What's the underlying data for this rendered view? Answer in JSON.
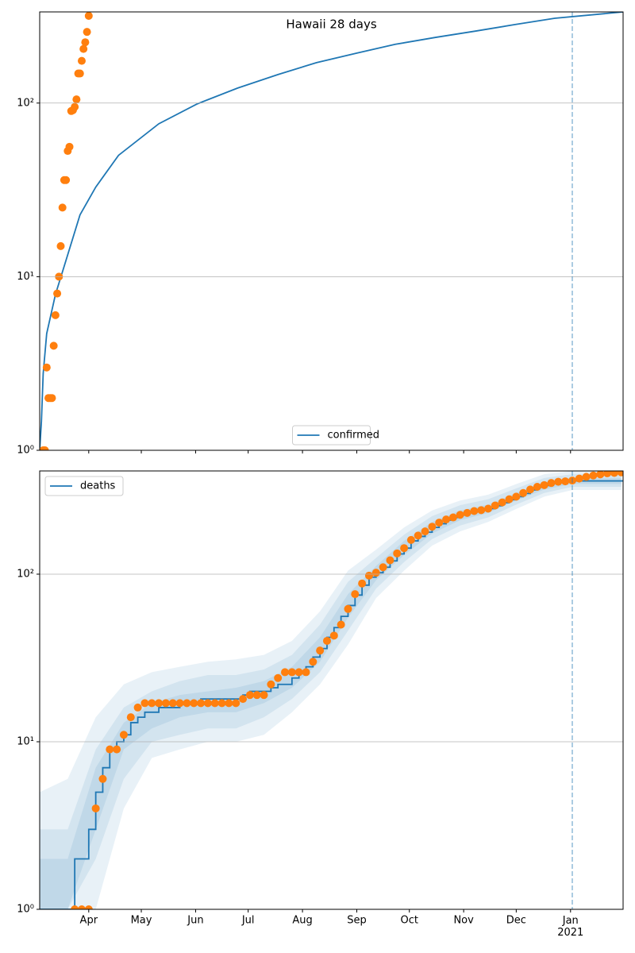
{
  "chart_data": [
    {
      "type": "line",
      "title": "Hawaii 28 days",
      "yscale": "log",
      "grid": true,
      "legend": "lower center",
      "xlim": [
        "2020-03-04",
        "2021-01-31"
      ],
      "ylim": [
        1,
        335
      ],
      "xticks": [
        "2020-04-01",
        "2020-05-01",
        "2020-06-01",
        "2020-07-01",
        "2020-08-01",
        "2020-09-01",
        "2020-10-01",
        "2020-11-01",
        "2020-12-01",
        "2021-01-01"
      ],
      "yticks": [
        {
          "value": 1,
          "label": "10⁰"
        },
        {
          "value": 10,
          "label": "10¹"
        },
        {
          "value": 100,
          "label": "10²"
        }
      ],
      "vline": "2021-01-02",
      "series": [
        {
          "name": "confirmed",
          "kind": "line",
          "color": "#1f77b4",
          "x": [
            "2020-03-04",
            "2020-03-05",
            "2020-03-06",
            "2020-03-08",
            "2020-03-13",
            "2020-03-18",
            "2020-03-27",
            "2020-04-05",
            "2020-04-18",
            "2020-05-11",
            "2020-06-02",
            "2020-06-25",
            "2020-07-18",
            "2020-08-09",
            "2020-09-01",
            "2020-09-23",
            "2020-10-16",
            "2020-11-08",
            "2020-11-30",
            "2020-12-23",
            "2021-01-31"
          ],
          "values": [
            1,
            1.47,
            2.77,
            4.7,
            7.9,
            11.5,
            22.7,
            32.8,
            50,
            76,
            99,
            122,
            146,
            171,
            194,
            218,
            239,
            260,
            283,
            308,
            335
          ]
        },
        {
          "kind": "scatter",
          "color": "#ff7f0e",
          "x": [
            "2020-03-06",
            "2020-03-07",
            "2020-03-08",
            "2020-03-09",
            "2020-03-10",
            "2020-03-11",
            "2020-03-12",
            "2020-03-13",
            "2020-03-14",
            "2020-03-15",
            "2020-03-16",
            "2020-03-17",
            "2020-03-18",
            "2020-03-19",
            "2020-03-20",
            "2020-03-21",
            "2020-03-22",
            "2020-03-23",
            "2020-03-24",
            "2020-03-25",
            "2020-03-26",
            "2020-03-27",
            "2020-03-28",
            "2020-03-29",
            "2020-03-30",
            "2020-03-31",
            "2020-04-01"
          ],
          "values": [
            1,
            1,
            3,
            2,
            2,
            2,
            4,
            6,
            8,
            10,
            15,
            25,
            36,
            36,
            53,
            56,
            90,
            91,
            95,
            105,
            148,
            148,
            175,
            205,
            224,
            257,
            318
          ]
        }
      ]
    },
    {
      "type": "line",
      "yscale": "log",
      "grid": true,
      "legend": "upper left",
      "xlim": [
        "2020-03-04",
        "2021-01-31"
      ],
      "ylim": [
        1,
        413
      ],
      "xticks": [
        {
          "value": "2020-04-01",
          "label": "Apr"
        },
        {
          "value": "2020-05-01",
          "label": "May"
        },
        {
          "value": "2020-06-01",
          "label": "Jun"
        },
        {
          "value": "2020-07-01",
          "label": "Jul"
        },
        {
          "value": "2020-08-01",
          "label": "Aug"
        },
        {
          "value": "2020-09-01",
          "label": "Sep"
        },
        {
          "value": "2020-10-01",
          "label": "Oct"
        },
        {
          "value": "2020-11-01",
          "label": "Nov"
        },
        {
          "value": "2020-12-01",
          "label": "Dec"
        },
        {
          "value": "2021-01-01",
          "label": "Jan\n2021"
        }
      ],
      "yticks": [
        {
          "value": 1,
          "label": "10⁰"
        },
        {
          "value": 10,
          "label": "10¹"
        },
        {
          "value": 100,
          "label": "10²"
        }
      ],
      "vline": "2021-01-02",
      "series": [
        {
          "kind": "band",
          "color": "#1f77b4",
          "x": [
            "2020-03-04",
            "2020-03-20",
            "2020-04-05",
            "2020-04-21",
            "2020-05-07",
            "2020-05-23",
            "2020-06-08",
            "2020-06-24",
            "2020-07-10",
            "2020-07-26",
            "2020-08-11",
            "2020-08-27",
            "2020-09-12",
            "2020-09-28",
            "2020-10-14",
            "2020-10-30",
            "2020-11-15",
            "2020-12-01",
            "2020-12-17",
            "2021-01-02",
            "2021-01-18",
            "2021-01-30"
          ],
          "lower": [
            1,
            1,
            1,
            4,
            8,
            9,
            10,
            10,
            11,
            15,
            22,
            38,
            72,
            105,
            148,
            180,
            205,
            245,
            290,
            318,
            318,
            318
          ],
          "upper": [
            5,
            6,
            14,
            22,
            26,
            28,
            30,
            31,
            33,
            40,
            60,
            105,
            140,
            190,
            240,
            275,
            298,
            345,
            395,
            413,
            413,
            413
          ]
        },
        {
          "kind": "band",
          "color": "#1f77b4",
          "x": [
            "2020-03-04",
            "2020-03-20",
            "2020-04-05",
            "2020-04-21",
            "2020-05-07",
            "2020-05-23",
            "2020-06-08",
            "2020-06-24",
            "2020-07-10",
            "2020-07-26",
            "2020-08-11",
            "2020-08-27",
            "2020-09-12",
            "2020-09-28",
            "2020-10-14",
            "2020-10-30",
            "2020-11-15",
            "2020-12-01",
            "2020-12-17",
            "2021-01-02",
            "2021-01-18",
            "2021-01-30"
          ],
          "lower": [
            1,
            1,
            2,
            6,
            10,
            11,
            12,
            12,
            14,
            18,
            26,
            46,
            82,
            118,
            162,
            195,
            218,
            260,
            305,
            332,
            332,
            332
          ],
          "upper": [
            3,
            3,
            9,
            16,
            20,
            23,
            25,
            25,
            27,
            33,
            50,
            90,
            125,
            172,
            222,
            258,
            280,
            325,
            375,
            395,
            395,
            395
          ]
        },
        {
          "kind": "band",
          "color": "#1f77b4",
          "x": [
            "2020-03-04",
            "2020-03-20",
            "2020-04-05",
            "2020-04-21",
            "2020-05-07",
            "2020-05-23",
            "2020-06-08",
            "2020-06-24",
            "2020-07-10",
            "2020-07-26",
            "2020-08-11",
            "2020-08-27",
            "2020-09-12",
            "2020-09-28",
            "2020-10-14",
            "2020-10-30",
            "2020-11-15",
            "2020-12-01",
            "2020-12-17",
            "2021-01-02",
            "2021-01-18",
            "2021-01-30"
          ],
          "lower": [
            1,
            1,
            3,
            9,
            12,
            14,
            15,
            15,
            17,
            21,
            30,
            55,
            92,
            130,
            175,
            210,
            232,
            275,
            320,
            345,
            345,
            345
          ],
          "upper": [
            2,
            2,
            7,
            13,
            17,
            19,
            20,
            21,
            23,
            28,
            42,
            76,
            112,
            158,
            205,
            240,
            260,
            305,
            355,
            375,
            375,
            375
          ]
        },
        {
          "name": "deaths",
          "kind": "line",
          "drawstyle": "steps",
          "color": "#1f77b4",
          "x": [
            "2020-03-04",
            "2020-03-08",
            "2020-03-12",
            "2020-03-16",
            "2020-03-20",
            "2020-03-24",
            "2020-03-28",
            "2020-04-01",
            "2020-04-05",
            "2020-04-09",
            "2020-04-13",
            "2020-04-17",
            "2020-04-21",
            "2020-04-25",
            "2020-04-29",
            "2020-05-03",
            "2020-05-07",
            "2020-05-11",
            "2020-05-15",
            "2020-05-19",
            "2020-05-23",
            "2020-05-27",
            "2020-05-31",
            "2020-06-04",
            "2020-06-08",
            "2020-06-12",
            "2020-06-16",
            "2020-06-20",
            "2020-06-24",
            "2020-06-28",
            "2020-07-02",
            "2020-07-06",
            "2020-07-10",
            "2020-07-14",
            "2020-07-18",
            "2020-07-22",
            "2020-07-26",
            "2020-07-30",
            "2020-08-03",
            "2020-08-07",
            "2020-08-11",
            "2020-08-15",
            "2020-08-19",
            "2020-08-23",
            "2020-08-27",
            "2020-08-31",
            "2020-09-04",
            "2020-09-08",
            "2020-09-12",
            "2020-09-16",
            "2020-09-20",
            "2020-09-24",
            "2020-09-28",
            "2020-10-02",
            "2020-10-06",
            "2020-10-10",
            "2020-10-14",
            "2020-10-18",
            "2020-10-22",
            "2020-10-26",
            "2020-10-30",
            "2020-11-03",
            "2020-11-07",
            "2020-11-11",
            "2020-11-15",
            "2020-11-19",
            "2020-11-23",
            "2020-11-27",
            "2020-12-01",
            "2020-12-05",
            "2020-12-09",
            "2020-12-13",
            "2020-12-17",
            "2020-12-21",
            "2020-12-25",
            "2020-12-29",
            "2021-01-02",
            "2021-01-06",
            "2021-01-10",
            "2021-01-14",
            "2021-01-18",
            "2021-01-22",
            "2021-01-26",
            "2021-01-30"
          ],
          "values": [
            1,
            1,
            1,
            1,
            1,
            2,
            2,
            3,
            5,
            7,
            9,
            10,
            11,
            13,
            14,
            15,
            15,
            16,
            16,
            16,
            17,
            17,
            17,
            18,
            18,
            18,
            18,
            18,
            18,
            19,
            20,
            20,
            20,
            21,
            22,
            22,
            24,
            26,
            28,
            32,
            36,
            42,
            48,
            56,
            65,
            75,
            86,
            96,
            102,
            110,
            120,
            132,
            143,
            158,
            168,
            178,
            190,
            200,
            210,
            218,
            225,
            232,
            237,
            241,
            246,
            256,
            267,
            278,
            290,
            303,
            318,
            330,
            338,
            348,
            355,
            358,
            360,
            360,
            360,
            360,
            360,
            360,
            360,
            360
          ]
        },
        {
          "kind": "scatter",
          "color": "#ff7f0e",
          "x": [
            "2020-03-04",
            "2020-03-08",
            "2020-03-12",
            "2020-03-16",
            "2020-03-20",
            "2020-03-24",
            "2020-03-28",
            "2020-04-01",
            "2020-04-05",
            "2020-04-09",
            "2020-04-13",
            "2020-04-17",
            "2020-04-21",
            "2020-04-25",
            "2020-04-29",
            "2020-05-03",
            "2020-05-07",
            "2020-05-11",
            "2020-05-15",
            "2020-05-19",
            "2020-05-23",
            "2020-05-27",
            "2020-05-31",
            "2020-06-04",
            "2020-06-08",
            "2020-06-12",
            "2020-06-16",
            "2020-06-20",
            "2020-06-24",
            "2020-06-28",
            "2020-07-02",
            "2020-07-06",
            "2020-07-10",
            "2020-07-14",
            "2020-07-18",
            "2020-07-22",
            "2020-07-26",
            "2020-07-30",
            "2020-08-03",
            "2020-08-07",
            "2020-08-11",
            "2020-08-15",
            "2020-08-19",
            "2020-08-23",
            "2020-08-27",
            "2020-08-31",
            "2020-09-04",
            "2020-09-08",
            "2020-09-12",
            "2020-09-16",
            "2020-09-20",
            "2020-09-24",
            "2020-09-28",
            "2020-10-02",
            "2020-10-06",
            "2020-10-10",
            "2020-10-14",
            "2020-10-18",
            "2020-10-22",
            "2020-10-26",
            "2020-10-30",
            "2020-11-03",
            "2020-11-07",
            "2020-11-11",
            "2020-11-15",
            "2020-11-19",
            "2020-11-23",
            "2020-11-27",
            "2020-12-01",
            "2020-12-05",
            "2020-12-09",
            "2020-12-13",
            "2020-12-17",
            "2020-12-21",
            "2020-12-25",
            "2020-12-29",
            "2021-01-02",
            "2021-01-06",
            "2021-01-10",
            "2021-01-14",
            "2021-01-18",
            "2021-01-22",
            "2021-01-26",
            "2021-01-30"
          ],
          "values": [
            null,
            null,
            null,
            null,
            null,
            1,
            1,
            1,
            4,
            6,
            9,
            9,
            11,
            14,
            16,
            17,
            17,
            17,
            17,
            17,
            17,
            17,
            17,
            17,
            17,
            17,
            17,
            17,
            17,
            18,
            19,
            19,
            19,
            22,
            24,
            26,
            26,
            26,
            26,
            30,
            35,
            40,
            43,
            50,
            62,
            76,
            88,
            98,
            102,
            110,
            121,
            133,
            143,
            160,
            170,
            180,
            192,
            203,
            212,
            218,
            226,
            232,
            238,
            241,
            246,
            257,
            268,
            280,
            290,
            305,
            320,
            332,
            340,
            350,
            356,
            358,
            362,
            372,
            381,
            388,
            394,
            400,
            402,
            405
          ]
        }
      ]
    }
  ]
}
